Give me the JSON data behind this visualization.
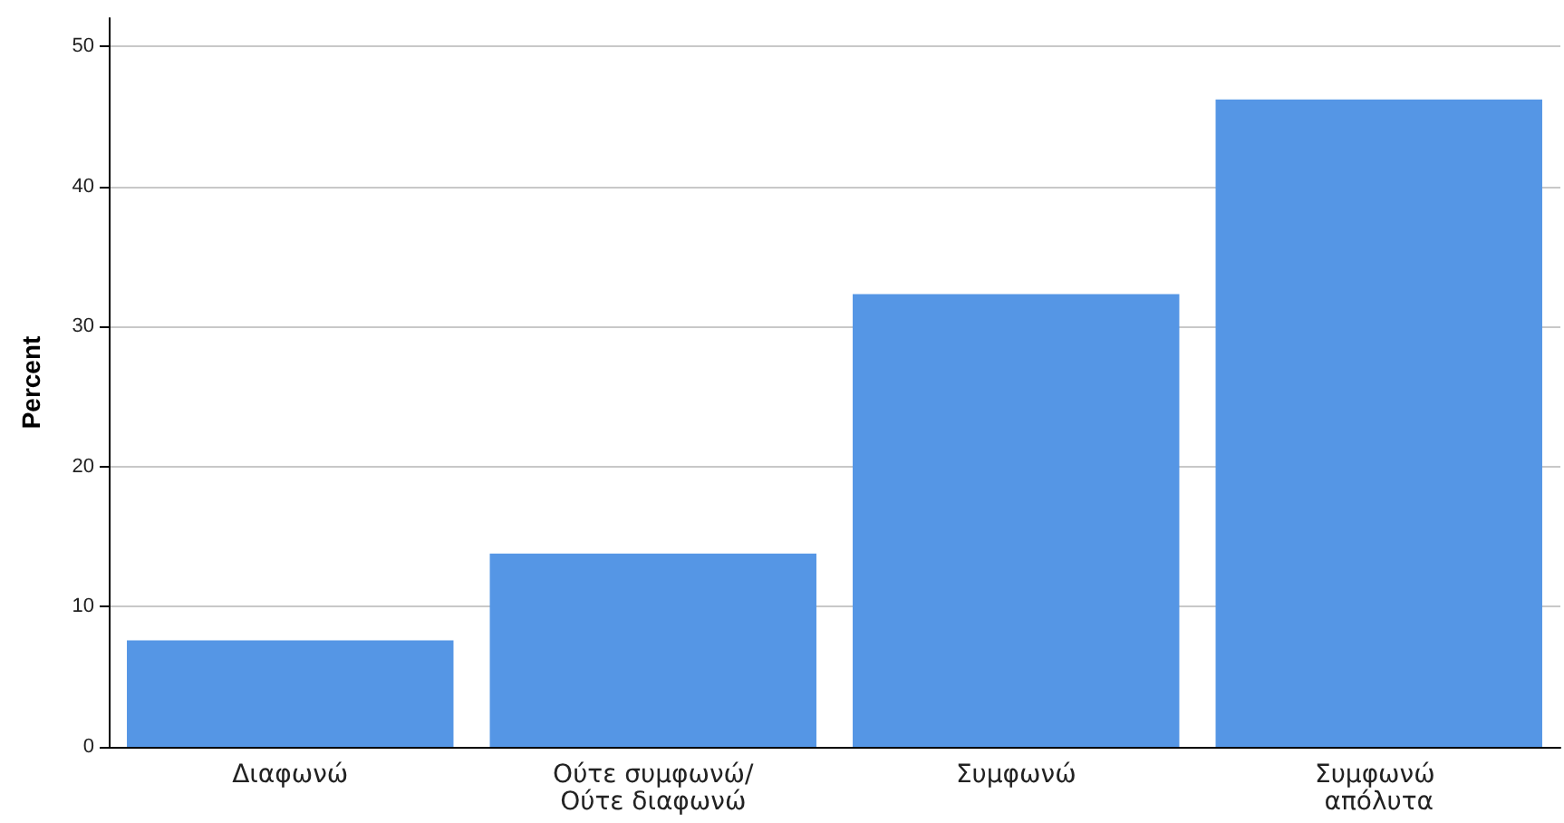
{
  "chart_data": {
    "type": "bar",
    "ylabel": "Percent",
    "categories": [
      "Διαφωνώ",
      "Ούτε συμφωνώ/Ούτε διαφωνώ",
      "Συμφωνώ",
      "Συμφωνώ απόλυτα"
    ],
    "values": [
      7.6,
      13.8,
      32.3,
      46.2
    ],
    "color": "#5596e5",
    "ylim": [
      0,
      52
    ],
    "yticks": [
      0,
      10,
      20,
      30,
      40,
      50
    ],
    "grid": "y"
  }
}
